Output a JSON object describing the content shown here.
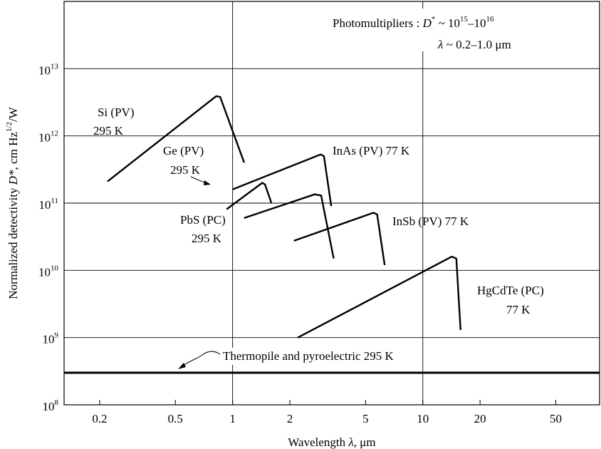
{
  "chart_data": {
    "type": "line",
    "xlabel": {
      "text": "Wavelength ",
      "sym": "λ",
      "unit": ",  μm"
    },
    "ylabel": {
      "text": "Normalized detectivity ",
      "sym": "D*",
      "unit": ", cm Hz",
      "sup": "1/2",
      "tail": "/W"
    },
    "x_scale": "log",
    "y_scale": "log",
    "xlim": [
      0.13,
      85
    ],
    "ylim": [
      100000000.0,
      100000000000000.0
    ],
    "grid": true,
    "x_ticks": [
      {
        "value": 0.2,
        "label": "0.2"
      },
      {
        "value": 0.5,
        "label": "0.5"
      },
      {
        "value": 1,
        "label": "1"
      },
      {
        "value": 2,
        "label": "2"
      },
      {
        "value": 5,
        "label": "5"
      },
      {
        "value": 10,
        "label": "10"
      },
      {
        "value": 20,
        "label": "20"
      },
      {
        "value": 50,
        "label": "50"
      }
    ],
    "x_gridlines": [
      1,
      10
    ],
    "y_ticks": [
      {
        "value": 100000000.0,
        "base": "10",
        "exp": "8"
      },
      {
        "value": 1000000000.0,
        "base": "10",
        "exp": "9"
      },
      {
        "value": 10000000000.0,
        "base": "10",
        "exp": "10"
      },
      {
        "value": 100000000000.0,
        "base": "10",
        "exp": "11"
      },
      {
        "value": 1000000000000.0,
        "base": "10",
        "exp": "12"
      },
      {
        "value": 10000000000000.0,
        "base": "10",
        "exp": "13"
      }
    ],
    "series": [
      {
        "name": "Si (PV) 295 K",
        "lines": [
          "Si (PV)",
          "295 K"
        ],
        "points": [
          [
            0.22,
            210000000000.0
          ],
          [
            0.82,
            3900000000000.0
          ],
          [
            0.86,
            3800000000000.0
          ],
          [
            1.15,
            400000000000.0
          ]
        ]
      },
      {
        "name": "Ge (PV) 295 K",
        "lines": [
          "Ge (PV)",
          "295 K"
        ],
        "points": [
          [
            0.93,
            81000000000.0
          ],
          [
            1.43,
            200000000000.0
          ],
          [
            1.48,
            190000000000.0
          ],
          [
            1.6,
            100000000000.0
          ]
        ]
      },
      {
        "name": "InAs (PV) 77 K",
        "lines": [
          "InAs (PV) 77 K"
        ],
        "points": [
          [
            1.0,
            160000000000.0
          ],
          [
            2.9,
            530000000000.0
          ],
          [
            3.02,
            500000000000.0
          ],
          [
            3.3,
            90000000000.0
          ]
        ]
      },
      {
        "name": "PbS (PC) 295 K",
        "lines": [
          "PbS (PC)",
          "295 K"
        ],
        "points": [
          [
            1.15,
            60000000000.0
          ],
          [
            2.7,
            135000000000.0
          ],
          [
            2.92,
            130000000000.0
          ],
          [
            3.4,
            15000000000.0
          ]
        ]
      },
      {
        "name": "InSb (PV) 77 K",
        "lines": [
          "InSb (PV) 77 K"
        ],
        "points": [
          [
            2.1,
            27500000000.0
          ],
          [
            5.5,
            72000000000.0
          ],
          [
            5.75,
            68000000000.0
          ],
          [
            6.3,
            12000000000.0
          ]
        ]
      },
      {
        "name": "HgCdTe (PC) 77 K",
        "lines": [
          "HgCdTe (PC)",
          "77 K"
        ],
        "points": [
          [
            2.2,
            1000000000.0
          ],
          [
            14.2,
            16000000000.0
          ],
          [
            15,
            15000000000.0
          ],
          [
            15.8,
            1300000000.0
          ]
        ]
      },
      {
        "name": "Thermopile and pyroelectric 295 K",
        "lines": [
          "Thermopile and pyroelectric 295 K"
        ],
        "points": [
          [
            0.13,
            300000000.0
          ],
          [
            85,
            300000000.0
          ]
        ]
      }
    ],
    "annotations": {
      "photomultipliers": {
        "prefix": "Photomultipliers : ",
        "sym": "D",
        "symsup": "*",
        "mid": " ~ 10",
        "e1": "15",
        "dash": "–10",
        "e2": "16"
      },
      "lambda_range": {
        "sym": "λ",
        "text": " ~ 0.2–1.0 ",
        "unit": "μm"
      }
    }
  }
}
